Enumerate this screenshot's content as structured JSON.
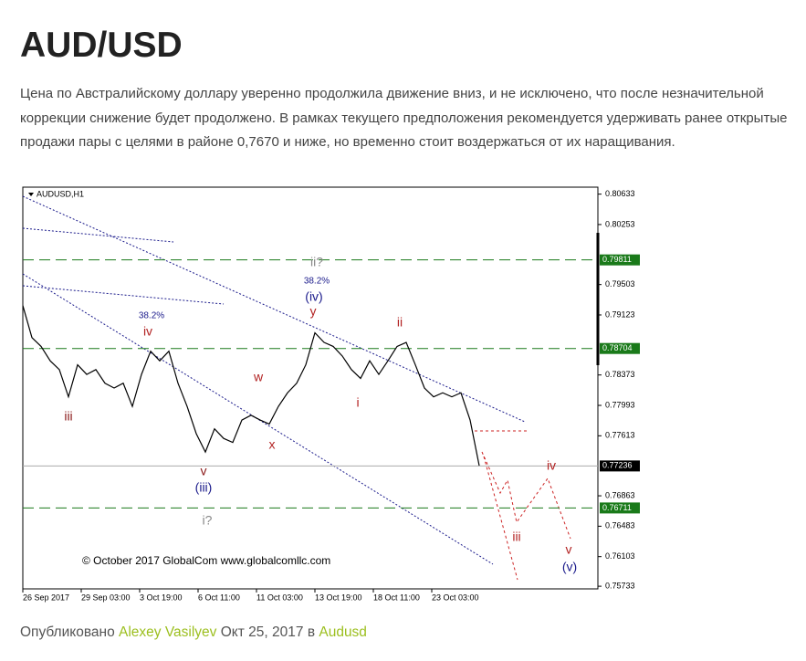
{
  "header": {
    "title": "AUD/USD"
  },
  "body": {
    "paragraph": "Цена по Австралийскому доллару уверенно продолжила движение вниз, и не исключено, что после незначительной коррекции снижение будет продолжено. В рамках текущего предположения рекомендуется удерживать ранее открытые продажи пары с целями в районе 0,7670 и ниже, но временно стоит воздержаться от их наращивания."
  },
  "chart_data": {
    "type": "line",
    "title": "AUDUSD,H1",
    "x": [
      0,
      1,
      2,
      3,
      4,
      5,
      6,
      7,
      8,
      9,
      10,
      11,
      12,
      13,
      14,
      15,
      16,
      17,
      18,
      19,
      20,
      21,
      22,
      23,
      24,
      25,
      26,
      27,
      28,
      29,
      30,
      31,
      32,
      33,
      34,
      35,
      36,
      37,
      38,
      39,
      40,
      41,
      42,
      43,
      44,
      45,
      46,
      47,
      48,
      49,
      50
    ],
    "series": [
      {
        "name": "AUDUSD",
        "color": "#000000",
        "values": [
          0.7924,
          0.7884,
          0.7873,
          0.7855,
          0.7844,
          0.781,
          0.785,
          0.7838,
          0.7844,
          0.7827,
          0.7821,
          0.7827,
          0.7798,
          0.7838,
          0.7867,
          0.7855,
          0.7867,
          0.7827,
          0.7798,
          0.7764,
          0.7741,
          0.777,
          0.7758,
          0.7753,
          0.7781,
          0.7787,
          0.7781,
          0.7776,
          0.7798,
          0.7815,
          0.7827,
          0.785,
          0.789,
          0.7878,
          0.7873,
          0.7861,
          0.7844,
          0.7833,
          0.7855,
          0.7838,
          0.7855,
          0.7873,
          0.7878,
          0.785,
          0.7821,
          0.781,
          0.7815,
          0.781,
          0.7815,
          0.7781,
          0.7724
        ]
      }
    ],
    "xlim": [
      0,
      63
    ],
    "xticks": [
      {
        "value": 0,
        "label": "26 Sep 2017"
      },
      {
        "value": 6.4,
        "label": "29 Sep 03:00"
      },
      {
        "value": 12.8,
        "label": "3 Oct 19:00"
      },
      {
        "value": 19.2,
        "label": "6 Oct 11:00"
      },
      {
        "value": 25.6,
        "label": "11 Oct 03:00"
      },
      {
        "value": 32,
        "label": "13 Oct 19:00"
      },
      {
        "value": 38.4,
        "label": "18 Oct 11:00"
      },
      {
        "value": 44.8,
        "label": "23 Oct 03:00"
      }
    ],
    "ylim": [
      0.757,
      0.8072
    ],
    "yticks": [
      0.80633,
      0.80253,
      0.79503,
      0.79123,
      0.78373,
      0.77993,
      0.77613,
      0.76863,
      0.76483,
      0.76103,
      0.75733
    ],
    "levels": [
      {
        "value": 0.79811,
        "color": "#1a7a1a"
      },
      {
        "value": 0.78704,
        "color": "#1a7a1a"
      },
      {
        "value": 0.77236,
        "color": "#000000"
      },
      {
        "value": 0.76711,
        "color": "#1a7a1a"
      }
    ],
    "annotations": [
      {
        "text": "iii",
        "color": "#8b1a1a"
      },
      {
        "text": "iv",
        "color": "#b22222"
      },
      {
        "text": "38.2%",
        "color": "#1a1a8b"
      },
      {
        "text": "v",
        "color": "#8b1a1a"
      },
      {
        "text": "(iii)",
        "color": "#1a1a8b"
      },
      {
        "text": "i?",
        "color": "#888888"
      },
      {
        "text": "w",
        "color": "#b22222"
      },
      {
        "text": "x",
        "color": "#b22222"
      },
      {
        "text": "y",
        "color": "#b22222"
      },
      {
        "text": "(iv)",
        "color": "#1a1a8b"
      },
      {
        "text": "38.2%",
        "color": "#1a1a8b"
      },
      {
        "text": "ii?",
        "color": "#888888"
      },
      {
        "text": "i",
        "color": "#b22222"
      },
      {
        "text": "ii",
        "color": "#b22222"
      },
      {
        "text": "iv",
        "color": "#b22222"
      },
      {
        "text": "iii",
        "color": "#b22222"
      },
      {
        "text": "v",
        "color": "#b22222"
      },
      {
        "text": "(v)",
        "color": "#1a1a8b"
      }
    ],
    "copyright": "© October 2017 GlobalCom www.globalcomllc.com"
  },
  "footer": {
    "prefix": "Опубликовано",
    "author": "Alexey Vasilyev",
    "date": "Окт 25, 2017",
    "in": "в",
    "category": "Audusd"
  }
}
